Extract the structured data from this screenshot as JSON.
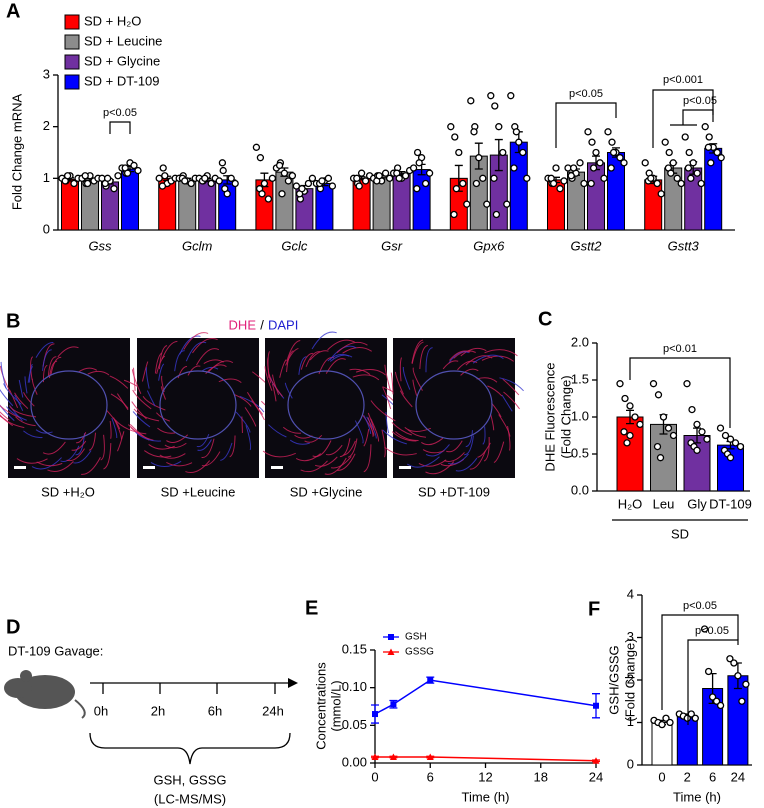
{
  "panel_labels": [
    "A",
    "B",
    "C",
    "D",
    "E",
    "F"
  ],
  "image_panel": {
    "stain_labels": [
      "DHE",
      "/",
      "DAPI"
    ],
    "captions": [
      "SD +H₂O",
      "SD +Leucine",
      "SD +Glycine",
      "SD +DT-109"
    ]
  },
  "diagram": {
    "title": "DT-109 Gavage:",
    "timepoints": [
      "0h",
      "2h",
      "6h",
      "24h"
    ],
    "analytes": "GSH, GSSG",
    "method": "(LC-MS/MS)"
  },
  "chart_data": [
    {
      "type": "bar",
      "ylabel": [
        "Fold Change mRNA"
      ],
      "categories": [
        "Gss",
        "Gclm",
        "Gclc",
        "Gsr",
        "Gpx6",
        "Gstt2",
        "Gstt3"
      ],
      "series": [
        {
          "name": "SD + H₂O",
          "color": "#ff0000",
          "values": [
            0.98,
            1.0,
            0.97,
            1.0,
            1.0,
            0.97,
            0.97
          ],
          "errors": [
            0.03,
            0.04,
            0.13,
            0.03,
            0.25,
            0.05,
            0.07
          ],
          "points": [
            [
              1.0,
              0.95,
              1.05,
              0.9,
              1.0,
              0.95,
              1.05
            ],
            [
              1.0,
              1.2,
              0.9,
              0.95,
              1.0,
              0.85,
              1.05
            ],
            [
              1.6,
              1.4,
              0.9,
              0.6,
              1.0,
              0.8,
              0.7
            ],
            [
              1.0,
              0.9,
              1.1,
              0.95,
              1.05,
              1.0,
              0.85
            ],
            [
              2.0,
              1.8,
              1.5,
              0.9,
              0.5,
              0.3,
              0.8
            ],
            [
              1.0,
              0.9,
              1.2,
              0.8,
              0.95,
              1.0,
              0.9
            ],
            [
              1.3,
              1.1,
              1.0,
              0.9,
              0.7,
              0.95,
              1.0
            ]
          ]
        },
        {
          "name": "SD + Leucine",
          "color": "#8c8c8c",
          "values": [
            0.97,
            0.97,
            1.12,
            1.02,
            1.43,
            1.12,
            1.2
          ],
          "errors": [
            0.03,
            0.03,
            0.08,
            0.03,
            0.25,
            0.06,
            0.1
          ],
          "points": [
            [
              1.0,
              0.9,
              1.05,
              0.95,
              1.0,
              1.05,
              0.9
            ],
            [
              1.0,
              1.05,
              0.95,
              0.9,
              1.0,
              1.0,
              0.95
            ],
            [
              1.2,
              1.3,
              1.1,
              0.95,
              1.05,
              1.25,
              0.7
            ],
            [
              1.0,
              1.05,
              0.95,
              1.1,
              1.0,
              0.95,
              1.05
            ],
            [
              2.5,
              2.0,
              1.4,
              1.0,
              0.5,
              1.9,
              0.9
            ],
            [
              1.2,
              1.0,
              1.1,
              1.3,
              0.9,
              1.05,
              1.2
            ],
            [
              1.7,
              1.5,
              1.3,
              1.0,
              0.9,
              1.2,
              1.1
            ]
          ]
        },
        {
          "name": "SD + Glycine",
          "color": "#7030a0",
          "values": [
            0.93,
            0.97,
            0.8,
            1.1,
            1.45,
            1.3,
            1.2
          ],
          "errors": [
            0.04,
            0.03,
            0.06,
            0.03,
            0.3,
            0.13,
            0.12
          ],
          "points": [
            [
              1.0,
              0.85,
              0.95,
              0.8,
              1.05,
              0.9,
              1.0
            ],
            [
              1.0,
              0.95,
              1.05,
              0.9,
              1.0,
              0.95,
              1.0
            ],
            [
              0.85,
              0.6,
              0.75,
              0.9,
              1.0,
              0.7,
              0.8
            ],
            [
              1.1,
              1.2,
              1.0,
              1.05,
              1.15,
              1.1,
              1.0
            ],
            [
              2.6,
              2.4,
              2.0,
              1.5,
              0.5,
              1.0,
              0.3
            ],
            [
              1.9,
              1.7,
              1.5,
              1.3,
              1.0,
              0.9,
              1.2
            ],
            [
              1.8,
              1.5,
              1.3,
              1.1,
              0.9,
              1.2,
              1.0
            ]
          ]
        },
        {
          "name": "SD + DT-109",
          "color": "#0000ff",
          "values": [
            1.18,
            0.97,
            0.9,
            1.17,
            1.7,
            1.5,
            1.58
          ],
          "errors": [
            0.05,
            0.08,
            0.04,
            0.1,
            0.2,
            0.09,
            0.09
          ],
          "points": [
            [
              1.2,
              1.1,
              1.3,
              1.25,
              1.15,
              1.2,
              1.1
            ],
            [
              0.95,
              1.15,
              0.7,
              1.0,
              0.9,
              1.3,
              0.8
            ],
            [
              0.9,
              0.8,
              0.95,
              1.0,
              0.85,
              0.9,
              0.95
            ],
            [
              1.2,
              1.5,
              1.4,
              0.9,
              1.1,
              0.8,
              1.3
            ],
            [
              2.6,
              2.0,
              1.7,
              1.5,
              1.0,
              1.2,
              1.9
            ],
            [
              1.9,
              1.7,
              1.5,
              1.4,
              1.3,
              1.2,
              1.5
            ],
            [
              2.0,
              1.8,
              1.6,
              1.5,
              1.4,
              1.6,
              1.3
            ]
          ]
        }
      ],
      "ylim": [
        0,
        3
      ],
      "yticks": [
        0,
        1,
        2,
        3
      ],
      "annotations": [
        "p<0.05",
        "p<0.05",
        "p<0.001",
        "p<0.05"
      ]
    },
    {
      "type": "bar",
      "ylabel": [
        "DHE Fluorescence",
        "(Fold Change)"
      ],
      "categories": [
        "H₂O",
        "Leu",
        "Gly",
        "DT-109"
      ],
      "group_label": "SD",
      "values": [
        1.0,
        0.9,
        0.75,
        0.62
      ],
      "errors": [
        0.09,
        0.13,
        0.1,
        0.05
      ],
      "colors": [
        "#ff0000",
        "#8c8c8c",
        "#7030a0",
        "#0000ff"
      ],
      "points": [
        [
          1.45,
          1.25,
          1.15,
          1.0,
          0.9,
          0.8,
          0.65,
          0.75
        ],
        [
          1.45,
          1.3,
          1.0,
          0.85,
          0.75,
          0.6,
          0.45
        ],
        [
          1.45,
          1.1,
          0.9,
          0.8,
          0.7,
          0.65,
          0.6,
          0.55
        ],
        [
          0.85,
          0.75,
          0.7,
          0.65,
          0.6,
          0.55,
          0.5,
          0.45
        ]
      ],
      "ylim": [
        0,
        2
      ],
      "yticks": [
        {
          "value": 0,
          "label": "0.0"
        },
        0.5,
        {
          "value": 1,
          "label": "1.0"
        },
        1.5,
        {
          "value": 2,
          "label": "2.0"
        }
      ],
      "annotations": [
        "p<0.01"
      ]
    },
    {
      "type": "line",
      "ylabel": [
        "Concentrations",
        "(mmol/L)"
      ],
      "xlabel": "Time (h)",
      "x": [
        0,
        2,
        6,
        24
      ],
      "series": [
        {
          "name": "GSH",
          "color": "#0000ff",
          "marker": "square",
          "values": [
            0.065,
            0.078,
            0.11,
            0.076
          ],
          "errors": [
            0.012,
            0.005,
            0.004,
            0.016
          ]
        },
        {
          "name": "GSSG",
          "color": "#ff0000",
          "marker": "triangle",
          "values": [
            0.008,
            0.008,
            0.008,
            0.003
          ],
          "errors": [
            0.001,
            0.001,
            0.001,
            0.001
          ]
        }
      ],
      "xlim": [
        0,
        24
      ],
      "xticks": [
        0,
        6,
        12,
        18,
        24
      ],
      "ylim": [
        0,
        0.15
      ],
      "yticks": [
        {
          "value": 0,
          "label": "0.00"
        },
        0.05,
        {
          "value": 0.1,
          "label": "0.10"
        },
        0.15
      ]
    },
    {
      "type": "bar",
      "ylabel": [
        "GSH/GSSG",
        "(Fold Change)"
      ],
      "xlabel": "Time (h)",
      "categories": [
        "0",
        "2",
        "6",
        "24"
      ],
      "values": [
        1.0,
        1.15,
        1.8,
        2.1
      ],
      "errors": [
        0.05,
        0.05,
        0.35,
        0.3
      ],
      "colors": [
        "#ffffff",
        "#0000ff",
        "#0000ff",
        "#0000ff"
      ],
      "points": [
        [
          1.05,
          1.0,
          0.95,
          1.1,
          1.0
        ],
        [
          1.2,
          1.15,
          1.1,
          1.2,
          1.1
        ],
        [
          3.2,
          2.2,
          1.6,
          1.5,
          1.4
        ],
        [
          2.5,
          2.4,
          2.1,
          1.5,
          1.9
        ]
      ],
      "ylim": [
        0,
        4
      ],
      "yticks": [
        0,
        1,
        2,
        3,
        4
      ],
      "annotations": [
        "p<0.05",
        "p<0.05"
      ]
    }
  ]
}
